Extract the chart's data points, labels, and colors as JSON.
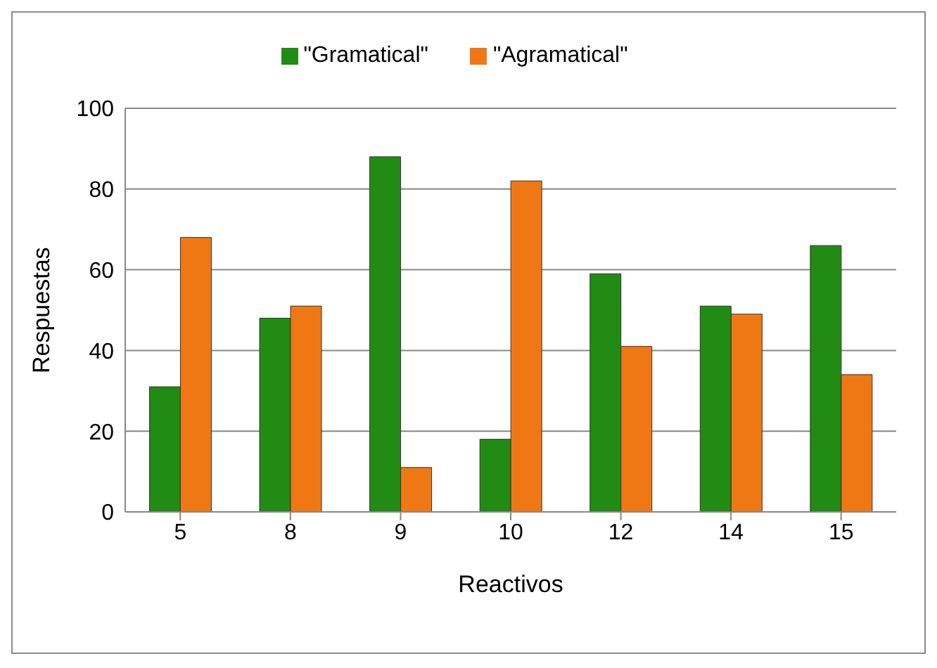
{
  "chart_data": {
    "type": "bar",
    "xlabel": "Reactivos",
    "ylabel": "Respuestas",
    "categories": [
      "5",
      "8",
      "9",
      "10",
      "12",
      "14",
      "15"
    ],
    "series": [
      {
        "name": "\"Gramatical\"",
        "color": "#228b14",
        "values": [
          31,
          48,
          88,
          18,
          59,
          51,
          66
        ]
      },
      {
        "name": "\"Agramatical\"",
        "color": "#f07814",
        "values": [
          68,
          51,
          11,
          82,
          41,
          49,
          34
        ]
      }
    ],
    "ylim": [
      0,
      100
    ],
    "yticks": [
      0,
      20,
      40,
      60,
      80,
      100
    ],
    "grid": "y",
    "legend": "top"
  }
}
